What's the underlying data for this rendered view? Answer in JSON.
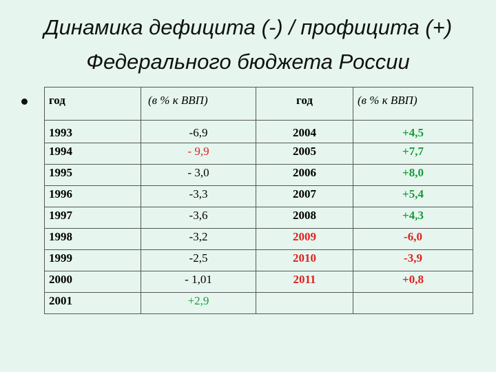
{
  "title": {
    "line1": "Динамика дефицита (-)  / профицита (+)",
    "line2": "Федерального бюджета России"
  },
  "table": {
    "headers": [
      "год",
      "(в % к ВВП)",
      "год",
      "(в % к ВВП)"
    ],
    "rows": [
      {
        "year1": "1993",
        "val1": "-6,9",
        "val1_color": "#000000",
        "year2": "2004",
        "year2_color": "#000000",
        "val2": "+4,5",
        "val2_color": "#1a9a3a"
      },
      {
        "year1": "1994",
        "val1": "- 9,9",
        "val1_color": "#e0201f",
        "year2": "2005",
        "year2_color": "#000000",
        "val2": "+7,7",
        "val2_color": "#1a9a3a"
      },
      {
        "year1": "1995",
        "val1": "- 3,0",
        "val1_color": "#000000",
        "year2": "2006",
        "year2_color": "#000000",
        "val2": "+8,0",
        "val2_color": "#1a9a3a"
      },
      {
        "year1": "1996",
        "val1": "-3,3",
        "val1_color": "#000000",
        "year2": "2007",
        "year2_color": "#000000",
        "val2": "+5,4",
        "val2_color": "#1a9a3a"
      },
      {
        "year1": "1997",
        "val1": "-3,6",
        "val1_color": "#000000",
        "year2": "2008",
        "year2_color": "#000000",
        "val2": "+4,3",
        "val2_color": "#1a9a3a"
      },
      {
        "year1": "1998",
        "val1": "-3,2",
        "val1_color": "#000000",
        "year2": "2009",
        "year2_color": "#e0201f",
        "val2": "-6,0",
        "val2_color": "#e0201f"
      },
      {
        "year1": "1999",
        "val1": "-2,5",
        "val1_color": "#000000",
        "year2": "2010",
        "year2_color": "#e0201f",
        "val2": "-3,9",
        "val2_color": "#e0201f"
      },
      {
        "year1": "2000",
        "val1": "- 1,01",
        "val1_color": "#000000",
        "year2": "2011",
        "year2_color": "#e0201f",
        "val2": "+0,8",
        "val2_color": "#e0201f"
      },
      {
        "year1": "2001",
        "val1": "+2,9",
        "val1_color": "#1a9a3a",
        "year2": "",
        "year2_color": "#000000",
        "val2": "",
        "val2_color": "#000000"
      }
    ]
  },
  "colors": {
    "background": "#e6f6ef",
    "deficit": "#e0201f",
    "surplus": "#1a9a3a"
  },
  "icons": {
    "bullet": "bullet-dot-icon"
  }
}
